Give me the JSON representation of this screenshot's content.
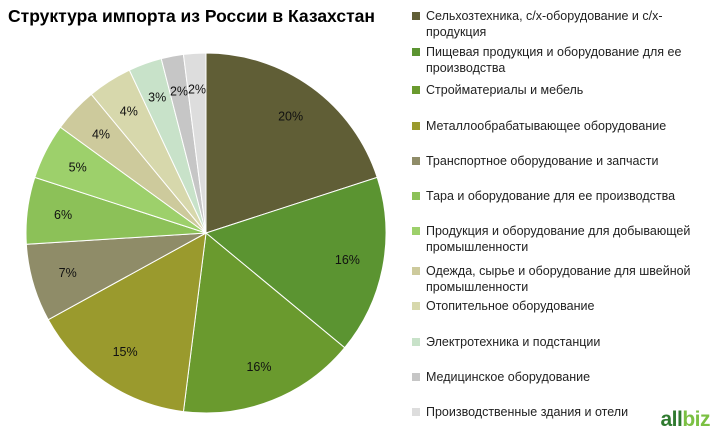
{
  "chart_data": {
    "type": "pie",
    "title": "Структура импорта из России в Казахстан",
    "categories": [
      "Сельхозтехника, с/х-оборудование и с/х-продукция",
      "Пищевая продукция и оборудование для ее производства",
      "Стройматериалы и мебель",
      "Металлообрабатывающее оборудование",
      "Транспортное оборудование и запчасти",
      "Тара и оборудование для ее производства",
      "Продукция и оборудование для добывающей промышленности",
      "Одежда, сырье и оборудование для швейной промышленности",
      "Отопительное оборудование",
      "Электротехника и подстанции",
      "Медицинское оборудование",
      "Производственные здания и отели"
    ],
    "values": [
      20,
      16,
      16,
      15,
      7,
      6,
      5,
      4,
      4,
      3,
      2,
      2
    ],
    "value_labels": [
      "20%",
      "16%",
      "16%",
      "15%",
      "7%",
      "6%",
      "5%",
      "4%",
      "4%",
      "3%",
      "2%",
      "2%"
    ],
    "colors": [
      "#605e36",
      "#5b9431",
      "#6a9a2e",
      "#9a9a2d",
      "#8f8c68",
      "#8cc158",
      "#9dd06b",
      "#cdca9c",
      "#d7d8ac",
      "#c8e2c9",
      "#c6c6c6",
      "#dddddd"
    ],
    "legend_position": "right"
  },
  "logo": {
    "part1": "all",
    "part2": "biz"
  }
}
